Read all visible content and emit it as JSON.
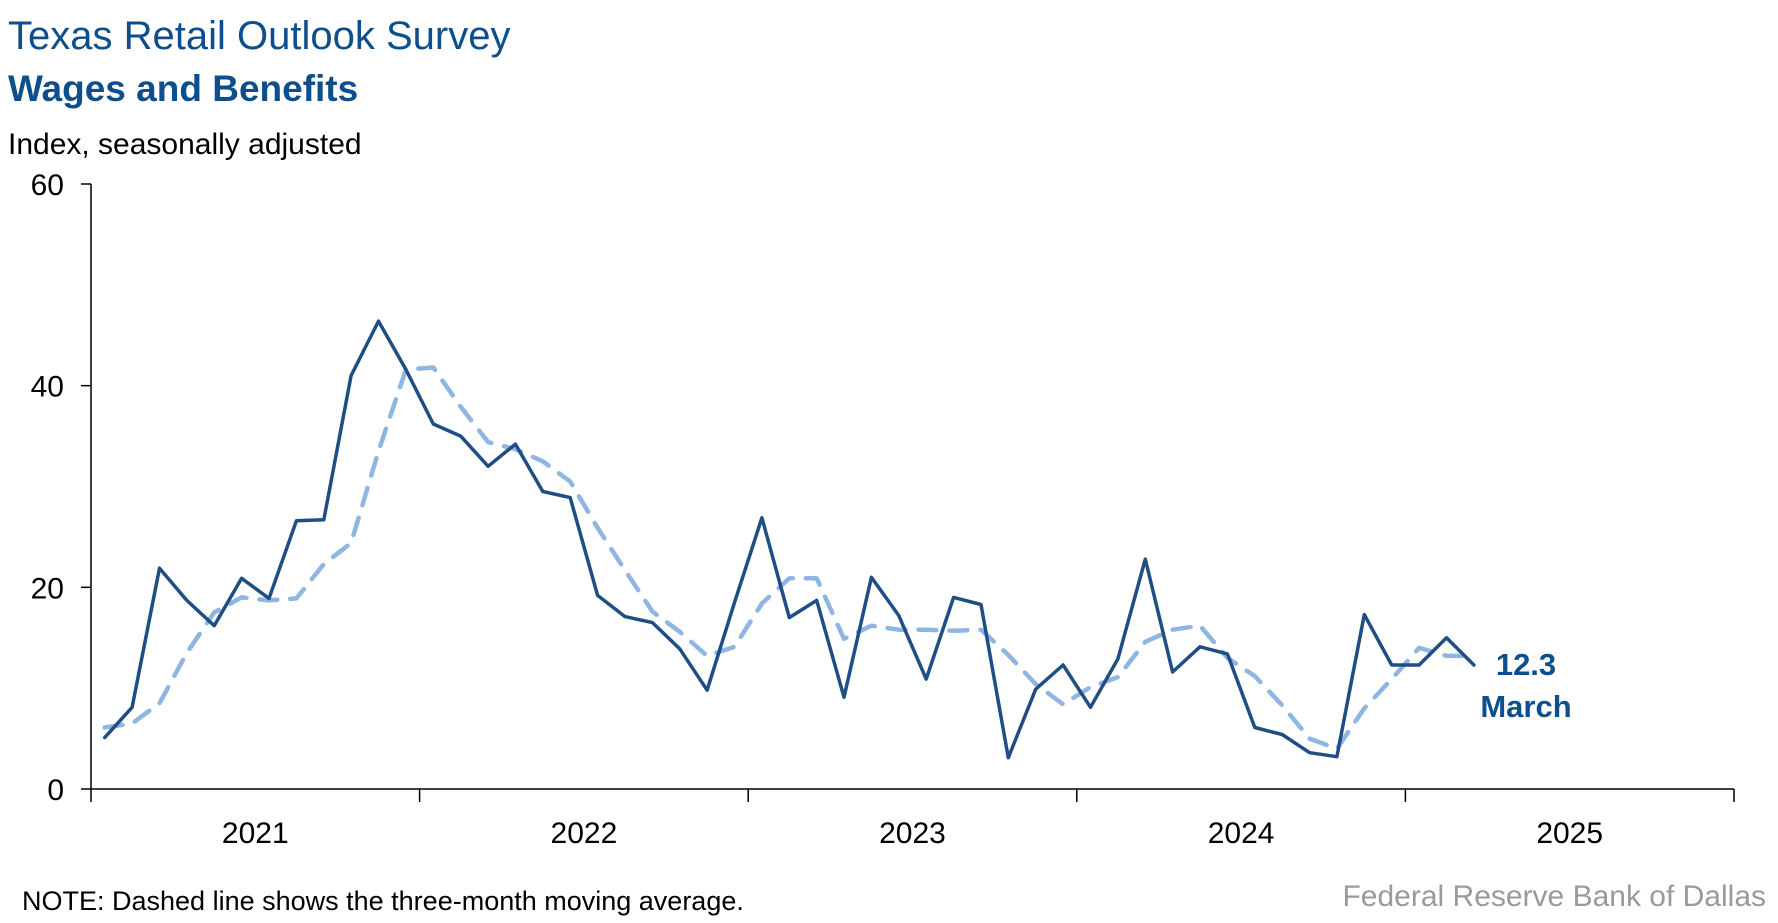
{
  "header": {
    "survey_title": "Texas Retail Outlook Survey",
    "chart_title": "Wages and Benefits",
    "unit_label": "Index, seasonally adjusted"
  },
  "footer": {
    "note": "NOTE: Dashed line shows the three-month moving average.",
    "source": "Federal Reserve Bank of Dallas"
  },
  "annotation": {
    "value": "12.3",
    "month": "March"
  },
  "colors": {
    "index_line": "#1f4e85",
    "moving_average": "#8fb5e3",
    "title": "#0d4f8c",
    "source": "#9a9a9a"
  },
  "chart_data": {
    "type": "line",
    "title": "Wages and Benefits",
    "ylabel": "Index, seasonally adjusted",
    "ylim": [
      0,
      60
    ],
    "yticks": [
      0,
      20,
      40,
      60
    ],
    "xlim": [
      "2021-01",
      "2025-12"
    ],
    "xtick_labels": [
      "2021",
      "2022",
      "2023",
      "2024",
      "2025"
    ],
    "grid": false,
    "x": [
      "2021-01",
      "2021-02",
      "2021-03",
      "2021-04",
      "2021-05",
      "2021-06",
      "2021-07",
      "2021-08",
      "2021-09",
      "2021-10",
      "2021-11",
      "2021-12",
      "2022-01",
      "2022-02",
      "2022-03",
      "2022-04",
      "2022-05",
      "2022-06",
      "2022-07",
      "2022-08",
      "2022-09",
      "2022-10",
      "2022-11",
      "2022-12",
      "2023-01",
      "2023-02",
      "2023-03",
      "2023-04",
      "2023-05",
      "2023-06",
      "2023-07",
      "2023-08",
      "2023-09",
      "2023-10",
      "2023-11",
      "2023-12",
      "2024-01",
      "2024-02",
      "2024-03",
      "2024-04",
      "2024-05",
      "2024-06",
      "2024-07",
      "2024-08",
      "2024-09",
      "2024-10",
      "2024-11",
      "2024-12",
      "2025-01",
      "2025-02",
      "2025-03"
    ],
    "series": [
      {
        "style": "solid",
        "values": [
          5.1,
          8.1,
          21.9,
          18.7,
          16.2,
          20.9,
          18.9,
          26.6,
          26.7,
          41.0,
          46.4,
          41.6,
          36.2,
          35.0,
          32.0,
          34.2,
          29.5,
          28.9,
          19.2,
          17.1,
          16.5,
          13.9,
          9.8,
          18.5,
          26.9,
          17.0,
          18.7,
          9.1,
          21.0,
          17.2,
          10.9,
          19.0,
          18.3,
          3.1,
          9.9,
          12.3,
          8.1,
          12.9,
          22.8,
          11.6,
          14.1,
          13.4,
          6.1,
          5.4,
          3.6,
          3.2,
          17.3,
          12.3,
          12.3,
          15.0,
          12.3
        ]
      },
      {
        "style": "dashed",
        "values": [
          6.1,
          6.5,
          8.5,
          13.5,
          17.5,
          19.0,
          18.7,
          18.9,
          22.3,
          24.4,
          33.5,
          41.6,
          41.8,
          37.9,
          34.4,
          33.7,
          32.5,
          30.5,
          25.9,
          21.7,
          17.6,
          15.6,
          13.2,
          14.1,
          18.4,
          20.9,
          20.9,
          14.9,
          16.2,
          15.8,
          15.8,
          15.7,
          15.8,
          13.3,
          10.4,
          8.4,
          10.1,
          11.1,
          14.6,
          15.8,
          16.2,
          13.0,
          11.2,
          8.3,
          5.0,
          4.0,
          8.0,
          10.9,
          14.0,
          13.2,
          13.2
        ]
      }
    ]
  }
}
